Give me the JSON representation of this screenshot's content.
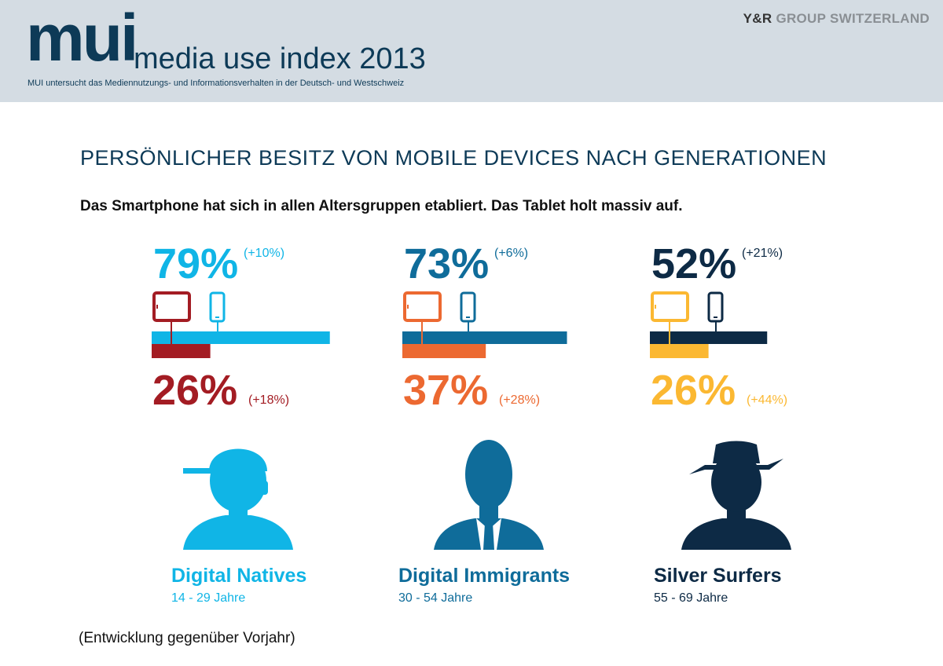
{
  "header": {
    "logo_text": "mui",
    "product_title": "media use index 2013",
    "subtitle": "MUI untersucht das Mediennutzungs- und Informationsverhalten in der Deutsch- und Westschweiz",
    "brand_part1": "Y&R",
    "brand_part2": "GROUP SWITZERLAND"
  },
  "title": "PERSÖNLICHER BESITZ VON MOBILE DEVICES NACH GENERATIONEN",
  "subtitle": "Das Smartphone hat sich in allen Altersgruppen etabliert. Das Tablet holt massiv auf.",
  "footnote": "(Entwicklung gegenüber Vorjahr)",
  "chart_data": {
    "type": "bar",
    "categories": [
      "Digital Natives",
      "Digital Immigrants",
      "Silver Surfers"
    ],
    "age_ranges": [
      "14 - 29 Jahre",
      "30 - 54 Jahre",
      "55 - 69 Jahre"
    ],
    "series": [
      {
        "values": [
          79,
          73,
          52
        ],
        "labels": [
          "79%",
          "73%",
          "52%"
        ],
        "changes": [
          "(+10%)",
          "(+6%)",
          "(+21%)"
        ],
        "icon": "smartphone-icon"
      },
      {
        "values": [
          26,
          37,
          26
        ],
        "labels": [
          "26%",
          "37%",
          "26%"
        ],
        "changes": [
          "(+18%)",
          "(+28%)",
          "(+44%)"
        ],
        "icon": "tablet-icon"
      }
    ],
    "colors": {
      "smartphone": [
        "#10b5e6",
        "#0f6c9a",
        "#0d2a45"
      ],
      "tablet": [
        "#a31c23",
        "#ec6931",
        "#fbb832"
      ]
    },
    "person_icons": [
      "cap-person-icon",
      "tie-person-icon",
      "hat-person-icon"
    ],
    "ylim": [
      0,
      100
    ]
  }
}
